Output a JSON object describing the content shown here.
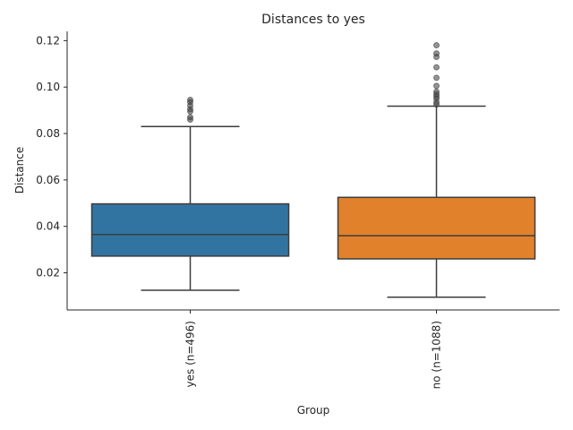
{
  "chart_data": {
    "type": "box",
    "title": "Distances to yes",
    "xlabel": "Group",
    "ylabel": "Distance",
    "ylim": [
      0.004,
      0.124
    ],
    "yticks": [
      0.02,
      0.04,
      0.06,
      0.08,
      0.1,
      0.12
    ],
    "ytick_labels": [
      "0.02",
      "0.04",
      "0.06",
      "0.08",
      "0.10",
      "0.12"
    ],
    "grid": false,
    "categories": [
      "yes (n=496)",
      "no (n=1088)"
    ],
    "boxes": [
      {
        "category": "yes (n=496)",
        "color": "#3274a1",
        "whisker_low": 0.0125,
        "q1": 0.0272,
        "median": 0.0365,
        "q3": 0.0497,
        "whisker_high": 0.083,
        "outliers": [
          0.086,
          0.087,
          0.0895,
          0.0905,
          0.092,
          0.0935,
          0.0945
        ]
      },
      {
        "category": "no (n=1088)",
        "color": "#e1812c",
        "whisker_low": 0.0095,
        "q1": 0.026,
        "median": 0.036,
        "q3": 0.0525,
        "whisker_high": 0.0918,
        "outliers": [
          0.0925,
          0.0935,
          0.095,
          0.096,
          0.097,
          0.098,
          0.1005,
          0.104,
          0.1085,
          0.113,
          0.1145,
          0.118
        ]
      }
    ]
  }
}
